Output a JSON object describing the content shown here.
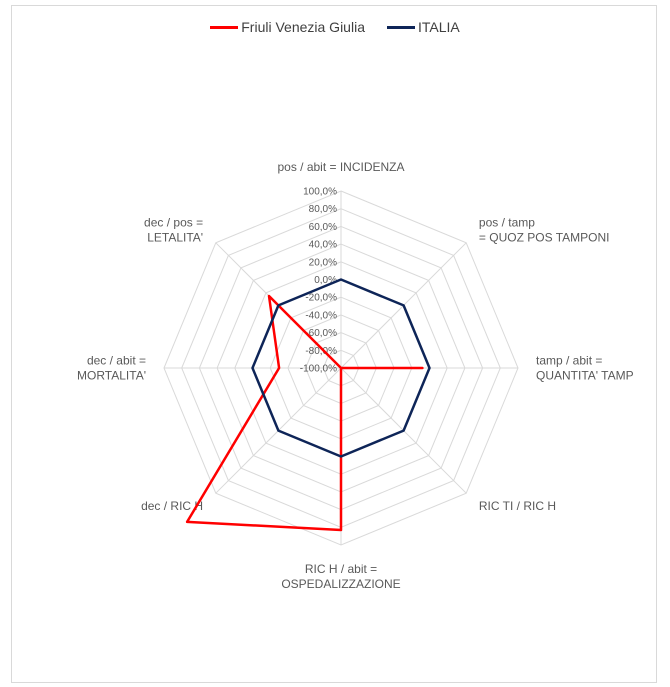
{
  "chart_data": {
    "type": "radar",
    "title": "",
    "axes": [
      "pos / abit = INCIDENZA",
      "pos / tamp\n= QUOZ POS TAMPONI",
      "tamp / abit =\nQUANTITA' TAMP",
      "RIC TI / RIC H",
      "RIC H / abit =\nOSPEDALIZZAZIONE",
      "dec / RIC H",
      "dec / abit =\nMORTALITA'",
      "dec / pos =\nLETALITA'"
    ],
    "tick_labels": [
      "100,0%",
      "80,0%",
      "60,0%",
      "40,0%",
      "20,0%",
      "0,0%",
      "-20,0%",
      "-40,0%",
      "-60,0%",
      "-80,0%",
      "-100,0%"
    ],
    "rlim": [
      -100,
      100
    ],
    "tick_step": 20,
    "legend_position": "top",
    "series": [
      {
        "name": "Friuli Venezia Giulia",
        "color": "#ff0000",
        "values": [
          -100,
          -100,
          -8,
          -100,
          83,
          146,
          -30,
          15
        ]
      },
      {
        "name": "ITALIA",
        "color": "#0e2558",
        "values": [
          0,
          0,
          0,
          0,
          0,
          0,
          0,
          0
        ]
      }
    ]
  }
}
